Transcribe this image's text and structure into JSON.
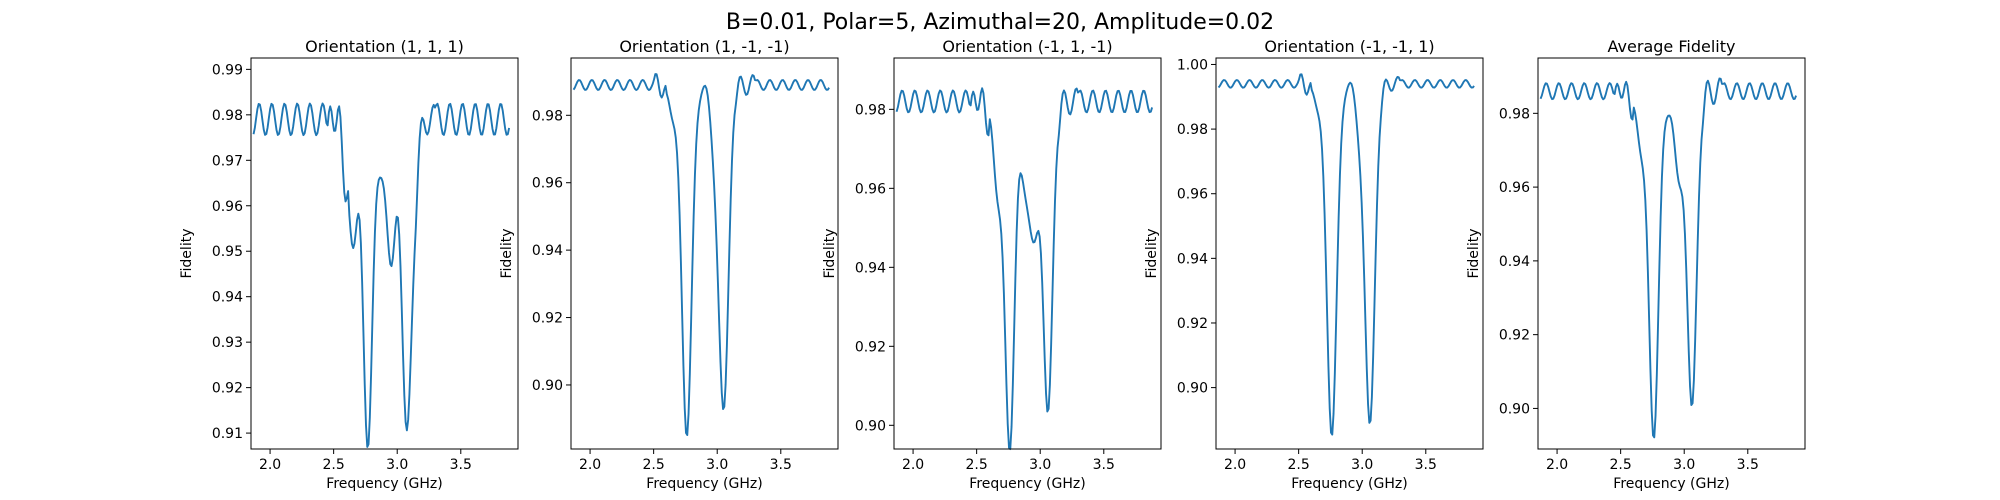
{
  "figure": {
    "suptitle": "B=0.01, Polar=5, Azimuthal=20, Amplitude=0.02"
  },
  "colors": {
    "series": "#1f77b4",
    "axes": "#000000",
    "background": "#ffffff"
  },
  "chart_data": [
    {
      "type": "line",
      "title": "Orientation (1, 1, 1)",
      "xlabel": "Frequency (GHz)",
      "ylabel": "Fidelity",
      "xlim": [
        1.85,
        3.95
      ],
      "ylim": [
        0.9065,
        0.9925
      ],
      "xticks": [
        "2.0",
        "2.5",
        "3.0",
        "3.5"
      ],
      "yticks": [
        "0.91",
        "0.92",
        "0.93",
        "0.94",
        "0.95",
        "0.96",
        "0.97",
        "0.98",
        "0.99"
      ],
      "grid": false,
      "model": {
        "x_range": [
          1.87,
          3.88
        ],
        "baseline": 0.979,
        "ripple": 0.0035,
        "ripple_period": 0.1,
        "pre_wiggle": [
          2.45,
          2.62,
          0.006
        ],
        "shoulders": [
          [
            2.64,
            0.04,
            0.026
          ],
          [
            2.94,
            0.04,
            0.03
          ]
        ],
        "dips": [
          [
            2.77,
            0.04,
            0.069
          ],
          [
            3.08,
            0.045,
            0.066
          ]
        ],
        "post_wiggle": [
          3.15,
          3.3,
          0.005
        ]
      }
    },
    {
      "type": "line",
      "title": "Orientation (1, -1, -1)",
      "xlabel": "Frequency (GHz)",
      "ylabel": "Fidelity",
      "xlim": [
        1.85,
        3.95
      ],
      "ylim": [
        0.881,
        0.997
      ],
      "xticks": [
        "2.0",
        "2.5",
        "3.0",
        "3.5"
      ],
      "yticks": [
        "0.90",
        "0.92",
        "0.94",
        "0.96",
        "0.98"
      ],
      "grid": false,
      "model": {
        "x_range": [
          1.87,
          3.88
        ],
        "baseline": 0.989,
        "ripple": 0.0015,
        "ripple_period": 0.1,
        "pre_wiggle": [
          2.5,
          2.6,
          0.002
        ],
        "shoulders": [
          [
            2.64,
            0.03,
            0.008
          ],
          [
            2.98,
            0.035,
            0.012
          ]
        ],
        "dips": [
          [
            2.76,
            0.04,
            0.103
          ],
          [
            3.05,
            0.04,
            0.094
          ]
        ],
        "post_wiggle": [
          3.15,
          3.3,
          0.004
        ]
      }
    },
    {
      "type": "line",
      "title": "Orientation (-1, 1, -1)",
      "xlabel": "Frequency (GHz)",
      "ylabel": "Fidelity",
      "xlim": [
        1.85,
        3.95
      ],
      "ylim": [
        0.894,
        0.993
      ],
      "xticks": [
        "2.0",
        "2.5",
        "3.0",
        "3.5"
      ],
      "yticks": [
        "0.90",
        "0.92",
        "0.94",
        "0.96",
        "0.98"
      ],
      "grid": false,
      "model": {
        "x_range": [
          1.87,
          3.88
        ],
        "baseline": 0.982,
        "ripple": 0.0028,
        "ripple_period": 0.1,
        "pre_wiggle": [
          2.45,
          2.6,
          0.005
        ],
        "shoulders": [
          [
            2.66,
            0.04,
            0.018
          ],
          [
            2.93,
            0.05,
            0.035
          ]
        ],
        "dips": [
          [
            2.76,
            0.04,
            0.085
          ],
          [
            3.06,
            0.04,
            0.075
          ]
        ],
        "post_wiggle": [
          3.15,
          3.3,
          0.005
        ]
      }
    },
    {
      "type": "line",
      "title": "Orientation (-1, -1, 1)",
      "xlabel": "Frequency (GHz)",
      "ylabel": "Fidelity",
      "xlim": [
        1.85,
        3.95
      ],
      "ylim": [
        0.881,
        1.002
      ],
      "xticks": [
        "2.0",
        "2.5",
        "3.0",
        "3.5"
      ],
      "yticks": [
        "0.90",
        "0.92",
        "0.94",
        "0.96",
        "0.98",
        "1.00"
      ],
      "grid": false,
      "model": {
        "x_range": [
          1.87,
          3.88
        ],
        "baseline": 0.994,
        "ripple": 0.0012,
        "ripple_period": 0.1,
        "pre_wiggle": [
          2.5,
          2.6,
          0.002
        ],
        "shoulders": [
          [
            2.64,
            0.03,
            0.006
          ],
          [
            2.98,
            0.03,
            0.01
          ]
        ],
        "dips": [
          [
            2.76,
            0.04,
            0.108
          ],
          [
            3.06,
            0.04,
            0.104
          ]
        ],
        "post_wiggle": [
          3.15,
          3.3,
          0.003
        ]
      }
    },
    {
      "type": "line",
      "title": "Average Fidelity",
      "xlabel": "Frequency (GHz)",
      "ylabel": "Fidelity",
      "xlim": [
        1.85,
        3.95
      ],
      "ylim": [
        0.889,
        0.995
      ],
      "xticks": [
        "2.0",
        "2.5",
        "3.0",
        "3.5"
      ],
      "yticks": [
        "0.90",
        "0.92",
        "0.94",
        "0.96",
        "0.98"
      ],
      "grid": false,
      "model": {
        "x_range": [
          1.87,
          3.88
        ],
        "baseline": 0.986,
        "ripple": 0.0022,
        "ripple_period": 0.1,
        "pre_wiggle": [
          2.45,
          2.6,
          0.004
        ],
        "shoulders": [
          [
            2.65,
            0.04,
            0.012
          ],
          [
            2.95,
            0.04,
            0.02
          ]
        ],
        "dips": [
          [
            2.76,
            0.04,
            0.092
          ],
          [
            3.06,
            0.04,
            0.083
          ]
        ],
        "post_wiggle": [
          3.15,
          3.3,
          0.005
        ]
      }
    }
  ]
}
